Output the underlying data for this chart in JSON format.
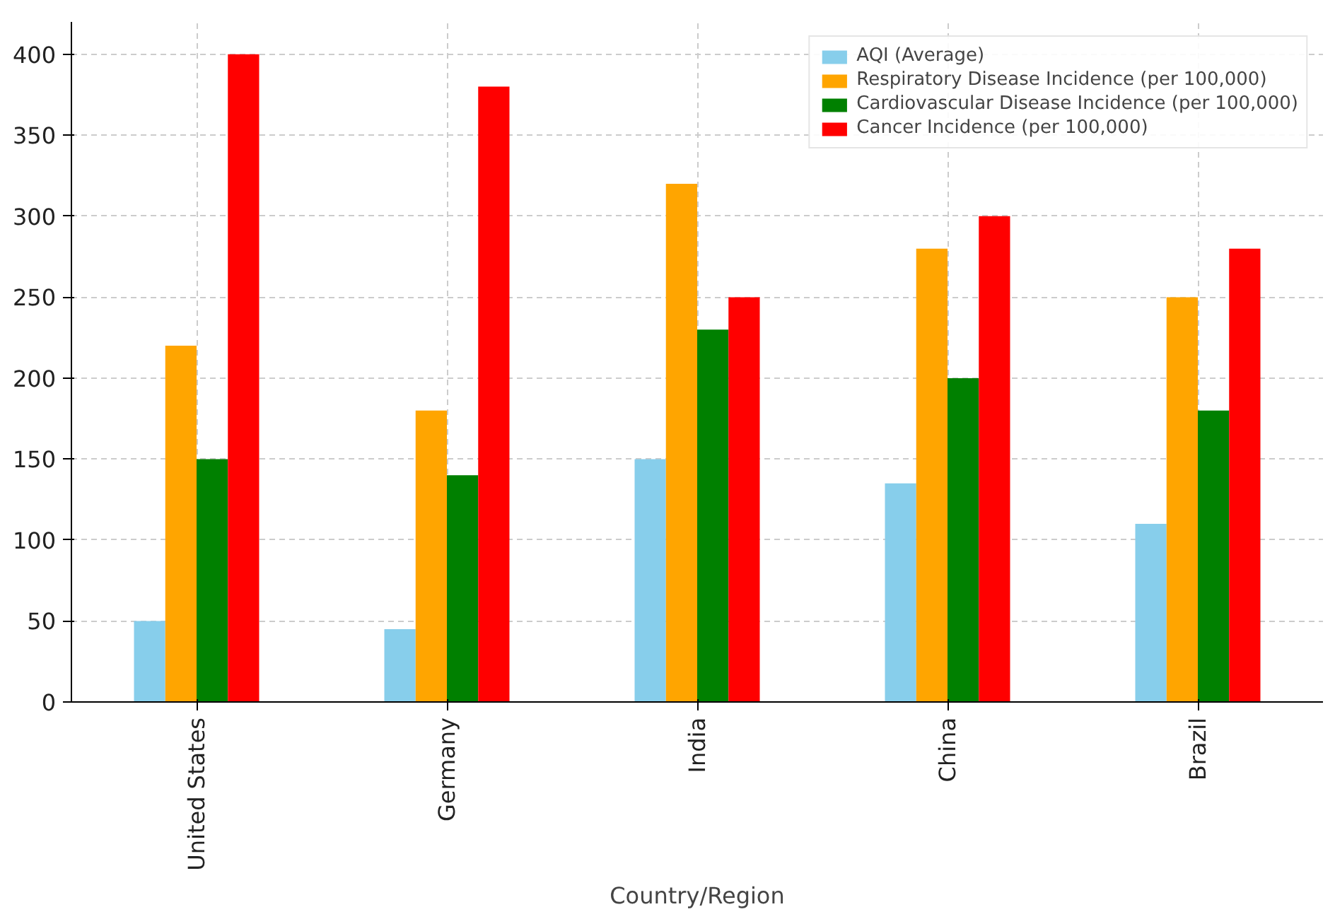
{
  "chart_data": {
    "type": "bar",
    "xlabel": "Country/Region",
    "categories": [
      "United States",
      "Germany",
      "India",
      "China",
      "Brazil"
    ],
    "series": [
      {
        "name": "AQI (Average)",
        "color": "#87ceeb",
        "values": [
          50,
          45,
          150,
          135,
          110
        ]
      },
      {
        "name": "Respiratory Disease Incidence (per 100,000)",
        "color": "#ffa500",
        "values": [
          220,
          180,
          320,
          280,
          250
        ]
      },
      {
        "name": "Cardiovascular Disease Incidence (per 100,000)",
        "color": "#008000",
        "values": [
          150,
          140,
          230,
          200,
          180
        ]
      },
      {
        "name": "Cancer Incidence (per 100,000)",
        "color": "#ff0000",
        "values": [
          400,
          380,
          250,
          300,
          280
        ]
      }
    ],
    "ylim": [
      0,
      420
    ],
    "yticks": [
      0,
      50,
      100,
      150,
      200,
      250,
      300,
      350,
      400
    ],
    "grid": true,
    "legend": "top right"
  }
}
